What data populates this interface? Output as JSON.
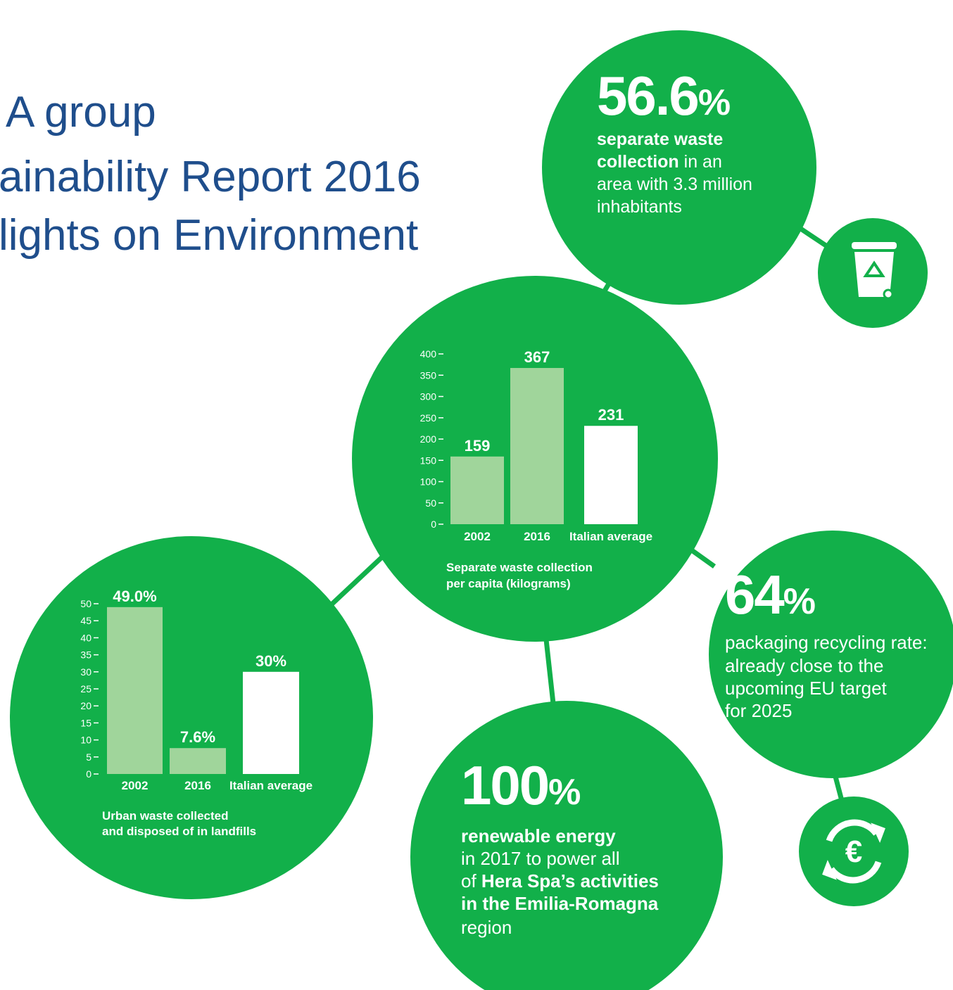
{
  "title_lines": [
    "A group",
    "ainability Report 2016",
    "lights on Environment"
  ],
  "stats": [
    {
      "number": "56.6",
      "unit": "%",
      "lines": [
        [
          {
            "text": "separate waste",
            "bold": true
          }
        ],
        [
          {
            "text": "collection",
            "bold": true
          },
          {
            "text": " in an"
          }
        ],
        [
          {
            "text": "area with 3.3 million"
          }
        ],
        [
          {
            "text": "inhabitants"
          }
        ]
      ]
    },
    {
      "number": "64",
      "unit": "%",
      "lines": [
        [
          {
            "text": "packaging recycling rate:"
          }
        ],
        [
          {
            "text": "already close to the"
          }
        ],
        [
          {
            "text": "upcoming EU target"
          }
        ],
        [
          {
            "text": "for 2025"
          }
        ]
      ]
    },
    {
      "number": "100",
      "unit": "%",
      "lines": [
        [
          {
            "text": "renewable energy",
            "bold": true
          }
        ],
        [
          {
            "text": "in 2017 to power all"
          }
        ],
        [
          {
            "text": "of "
          },
          {
            "text": "Hera Spa’s activities",
            "bold": true
          }
        ],
        [
          {
            "text": "in the Emilia-Romagna",
            "bold": true
          }
        ],
        [
          {
            "text": "region"
          }
        ]
      ]
    }
  ],
  "chart_data": [
    {
      "type": "bar",
      "title_lines": [
        "Separate waste collection",
        "per capita (kilograms)"
      ],
      "categories": [
        "2002",
        "2016",
        "Italian average"
      ],
      "values": [
        159,
        367,
        231
      ],
      "colors": [
        "#a0d59b",
        "#a0d59b",
        "#ffffff"
      ],
      "ylim": [
        0,
        400
      ],
      "yticks": [
        0,
        50,
        100,
        150,
        200,
        250,
        300,
        350,
        400
      ]
    },
    {
      "type": "bar",
      "title_lines": [
        "Urban waste collected",
        "and disposed of in landfills"
      ],
      "categories": [
        "2002",
        "2016",
        "Italian average"
      ],
      "values": [
        49.0,
        7.6,
        30
      ],
      "value_labels": [
        "49.0%",
        "7.6%",
        "30%"
      ],
      "colors": [
        "#a0d59b",
        "#a0d59b",
        "#ffffff"
      ],
      "ylim": [
        0,
        50
      ],
      "yticks": [
        0,
        5,
        10,
        15,
        20,
        25,
        30,
        35,
        40,
        45,
        50
      ]
    }
  ]
}
